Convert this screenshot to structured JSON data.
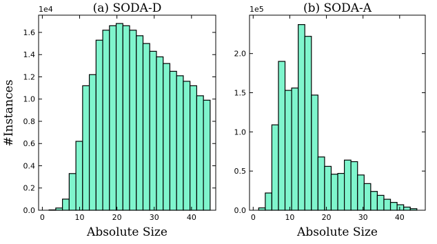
{
  "y_label": "#Instances",
  "chart_data": [
    {
      "type": "histogram",
      "title": "(a) SODA-D",
      "x_label": "Absolute Size",
      "offset_label": "1e4",
      "bins": [
        1.8,
        3.6,
        5.4,
        7.2,
        9,
        10.8,
        12.6,
        14.4,
        16.2,
        18,
        19.8,
        21.6,
        23.4,
        25.2,
        27,
        28.8,
        30.6,
        32.4,
        34.2,
        36,
        37.8,
        39.6,
        41.4,
        43.2,
        45
      ],
      "values": [
        0.003,
        0.02,
        0.1,
        0.33,
        0.62,
        1.12,
        1.22,
        1.53,
        1.62,
        1.66,
        1.68,
        1.66,
        1.62,
        1.57,
        1.5,
        1.43,
        1.38,
        1.32,
        1.25,
        1.21,
        1.16,
        1.12,
        1.03,
        0.99
      ],
      "color": "#7ff5cd",
      "xlim": [
        -1,
        46.5
      ],
      "xticks": [
        0,
        10,
        20,
        30,
        40
      ],
      "ylim": [
        0,
        1.755
      ],
      "yticks": [
        {
          "value": 0,
          "label": "0.0"
        },
        0.2,
        0.4,
        0.6,
        0.8,
        {
          "value": 1,
          "label": "1.0"
        },
        1.2,
        1.4,
        1.6
      ]
    },
    {
      "type": "histogram",
      "title": "(b) SODA-A",
      "x_label": "Absolute Size",
      "offset_label": "1e5",
      "bins": [
        1.5,
        3.3,
        5.1,
        6.9,
        8.7,
        10.5,
        12.3,
        14.1,
        15.9,
        17.7,
        19.5,
        21.3,
        23.1,
        24.9,
        26.7,
        28.5,
        30.3,
        32.1,
        33.9,
        35.7,
        37.5,
        39.3,
        41.1,
        42.9,
        44.7
      ],
      "values": [
        0.03,
        0.22,
        1.09,
        1.9,
        1.53,
        1.56,
        2.37,
        2.22,
        1.47,
        0.68,
        0.56,
        0.46,
        0.47,
        0.64,
        0.62,
        0.45,
        0.34,
        0.24,
        0.19,
        0.14,
        0.1,
        0.07,
        0.04,
        0.02
      ],
      "color": "#7ff5cd",
      "xlim": [
        -1,
        47
      ],
      "xticks": [
        0,
        10,
        20,
        30,
        40
      ],
      "ylim": [
        0,
        2.49
      ],
      "yticks": [
        {
          "value": 0,
          "label": "0.0"
        },
        0.5,
        {
          "value": 1,
          "label": "1.0"
        },
        1.5,
        {
          "value": 2,
          "label": "2.0"
        }
      ]
    }
  ]
}
